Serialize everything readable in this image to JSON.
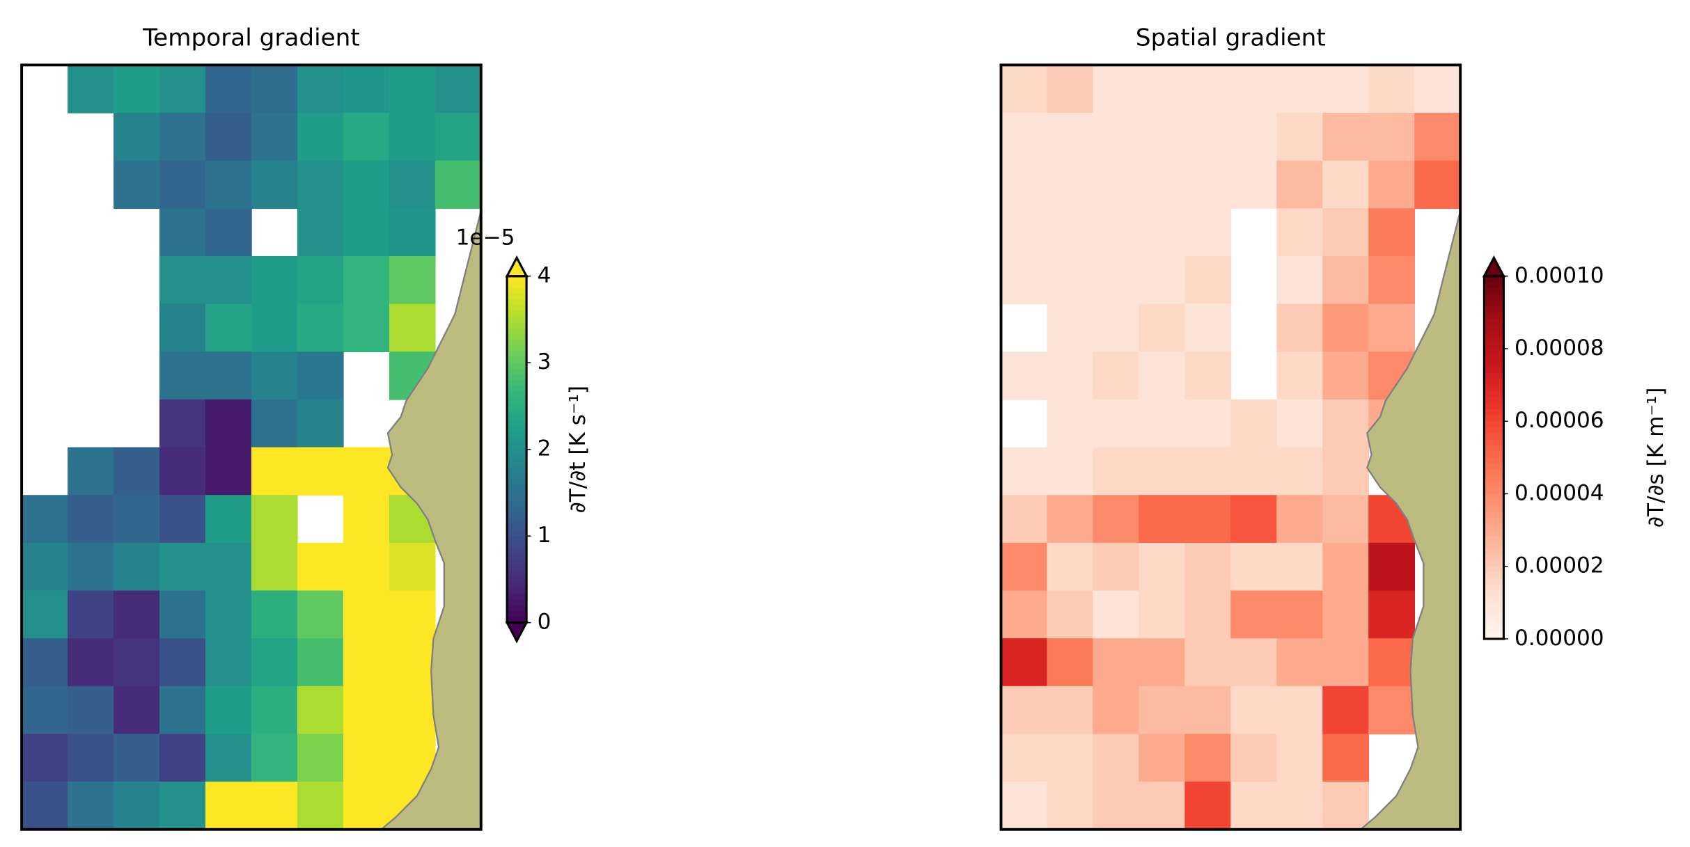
{
  "chart_data": [
    {
      "type": "heatmap",
      "title": "Temporal gradient",
      "cmap": "viridis",
      "extend": "both",
      "clim": [
        0,
        4
      ],
      "cticks": [
        0,
        1,
        2,
        3,
        4
      ],
      "offset_text": "1e−5",
      "colorbar_label": "∂T/∂t [K s⁻¹]",
      "values": [
        [
          null,
          2.0,
          2.2,
          2.0,
          1.3,
          1.4,
          2.0,
          2.1,
          2.2,
          2.0
        ],
        [
          null,
          null,
          1.8,
          1.5,
          1.2,
          1.5,
          2.2,
          2.4,
          2.2,
          2.3
        ],
        [
          null,
          null,
          1.5,
          1.3,
          1.5,
          1.8,
          2.0,
          2.2,
          2.0,
          2.8
        ],
        [
          null,
          null,
          null,
          1.5,
          1.3,
          null,
          2.0,
          2.2,
          2.1,
          null
        ],
        [
          null,
          null,
          null,
          2.0,
          2.0,
          2.2,
          2.3,
          2.6,
          3.0,
          null
        ],
        [
          null,
          null,
          null,
          1.8,
          2.3,
          2.2,
          2.4,
          2.6,
          3.5,
          null
        ],
        [
          null,
          null,
          null,
          1.5,
          1.5,
          1.8,
          1.6,
          null,
          2.8,
          null
        ],
        [
          null,
          null,
          null,
          0.6,
          0.3,
          1.5,
          1.8,
          null,
          null,
          null
        ],
        [
          null,
          1.5,
          1.2,
          0.5,
          0.3,
          4,
          4,
          4,
          4,
          null
        ],
        [
          1.5,
          1.2,
          1.3,
          1.0,
          2.2,
          3.5,
          null,
          4,
          3.5,
          null
        ],
        [
          1.8,
          1.5,
          1.8,
          2.0,
          2.0,
          3.5,
          4,
          4,
          3.8,
          null
        ],
        [
          2.0,
          0.8,
          0.5,
          1.5,
          2.0,
          2.5,
          3.0,
          4,
          4,
          null
        ],
        [
          1.2,
          0.5,
          0.6,
          1.0,
          2.0,
          2.3,
          2.8,
          4,
          4,
          null
        ],
        [
          1.3,
          1.2,
          0.5,
          1.5,
          2.2,
          2.5,
          3.5,
          4,
          4,
          null
        ],
        [
          0.8,
          1.0,
          1.2,
          0.8,
          2.0,
          2.6,
          3.2,
          4,
          4,
          null
        ],
        [
          1.0,
          1.5,
          1.8,
          2.0,
          4,
          4,
          3.5,
          4,
          4,
          null
        ]
      ]
    },
    {
      "type": "heatmap",
      "title": "Spatial gradient",
      "cmap": "Reds",
      "extend": "max",
      "clim": [
        0,
        0.0001
      ],
      "cticks": [
        {
          "value": 0,
          "label": "0.00000"
        },
        {
          "value": 2e-05,
          "label": "0.00002"
        },
        {
          "value": 4e-05,
          "label": "0.00004"
        },
        {
          "value": 6e-05,
          "label": "0.00006"
        },
        {
          "value": 8e-05,
          "label": "0.00008"
        },
        {
          "value": 0.0001,
          "label": "0.00010"
        }
      ],
      "colorbar_label": "∂T/∂s [K m⁻¹]",
      "values": [
        [
          1.5e-05,
          2e-05,
          1e-05,
          1e-05,
          1e-05,
          1e-05,
          1e-05,
          1e-05,
          1.5e-05,
          1e-05
        ],
        [
          1e-05,
          1e-05,
          1e-05,
          1e-05,
          1e-05,
          1e-05,
          1.5e-05,
          2.5e-05,
          2.5e-05,
          4e-05
        ],
        [
          1e-05,
          1e-05,
          1e-05,
          1e-05,
          1e-05,
          1e-05,
          2.5e-05,
          1.5e-05,
          3e-05,
          5e-05
        ],
        [
          1e-05,
          1e-05,
          1e-05,
          1e-05,
          1e-05,
          null,
          1.5e-05,
          2e-05,
          4.5e-05,
          null
        ],
        [
          1e-05,
          1e-05,
          1e-05,
          1e-05,
          1.5e-05,
          null,
          1e-05,
          2.5e-05,
          4e-05,
          null
        ],
        [
          null,
          1e-05,
          1e-05,
          1.5e-05,
          1e-05,
          null,
          2e-05,
          3.5e-05,
          3e-05,
          null
        ],
        [
          1e-05,
          1e-05,
          1.5e-05,
          1e-05,
          1.5e-05,
          null,
          1.5e-05,
          3e-05,
          4e-05,
          null
        ],
        [
          null,
          1e-05,
          1e-05,
          1e-05,
          1e-05,
          1.5e-05,
          1e-05,
          2e-05,
          3e-05,
          null
        ],
        [
          1e-05,
          1e-05,
          1.5e-05,
          1.5e-05,
          1.5e-05,
          1.5e-05,
          1.5e-05,
          2e-05,
          null,
          null
        ],
        [
          2e-05,
          3e-05,
          4e-05,
          5e-05,
          5e-05,
          5.5e-05,
          3e-05,
          2.5e-05,
          6e-05,
          null
        ],
        [
          4e-05,
          1.5e-05,
          2e-05,
          1.5e-05,
          2e-05,
          1.5e-05,
          1.5e-05,
          3e-05,
          8e-05,
          null
        ],
        [
          3e-05,
          2e-05,
          1e-05,
          1.5e-05,
          2e-05,
          4e-05,
          4e-05,
          3e-05,
          7e-05,
          null
        ],
        [
          7e-05,
          4.5e-05,
          3e-05,
          3e-05,
          2e-05,
          2e-05,
          3e-05,
          3e-05,
          5e-05,
          null
        ],
        [
          2e-05,
          2e-05,
          3e-05,
          2.5e-05,
          2.5e-05,
          1.5e-05,
          1.5e-05,
          6e-05,
          4e-05,
          null
        ],
        [
          1.5e-05,
          1.5e-05,
          2e-05,
          3e-05,
          4e-05,
          2e-05,
          1.5e-05,
          5e-05,
          null,
          null
        ],
        [
          1e-05,
          1.5e-05,
          2e-05,
          2e-05,
          6e-05,
          1.5e-05,
          1.5e-05,
          2e-05,
          null,
          null
        ]
      ]
    }
  ]
}
